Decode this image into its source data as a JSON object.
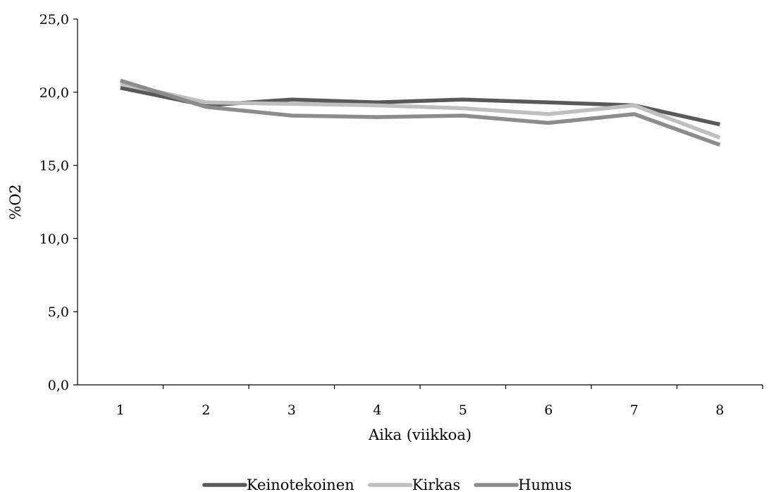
{
  "chart_data": {
    "type": "line",
    "title": "",
    "xlabel": "Aika (viikkoa)",
    "ylabel": "%O2",
    "x": [
      "1",
      "2",
      "3",
      "4",
      "5",
      "6",
      "7",
      "8"
    ],
    "ylim": [
      0,
      25
    ],
    "y_ticks": [
      "0,0",
      "5,0",
      "10,0",
      "15,0",
      "20,0",
      "25,0"
    ],
    "grid": false,
    "legend_position": "bottom",
    "series": [
      {
        "name": "Keinotekoinen",
        "color": "#595959",
        "values": [
          20.3,
          19.1,
          19.5,
          19.3,
          19.5,
          19.3,
          19.1,
          17.8
        ]
      },
      {
        "name": "Kirkas",
        "color": "#bfbfbf",
        "values": [
          20.6,
          19.3,
          19.2,
          19.1,
          18.9,
          18.5,
          19.1,
          16.9
        ]
      },
      {
        "name": "Humus",
        "color": "#8c8c8c",
        "values": [
          20.8,
          19.0,
          18.4,
          18.3,
          18.4,
          17.9,
          18.5,
          16.4
        ]
      }
    ]
  }
}
